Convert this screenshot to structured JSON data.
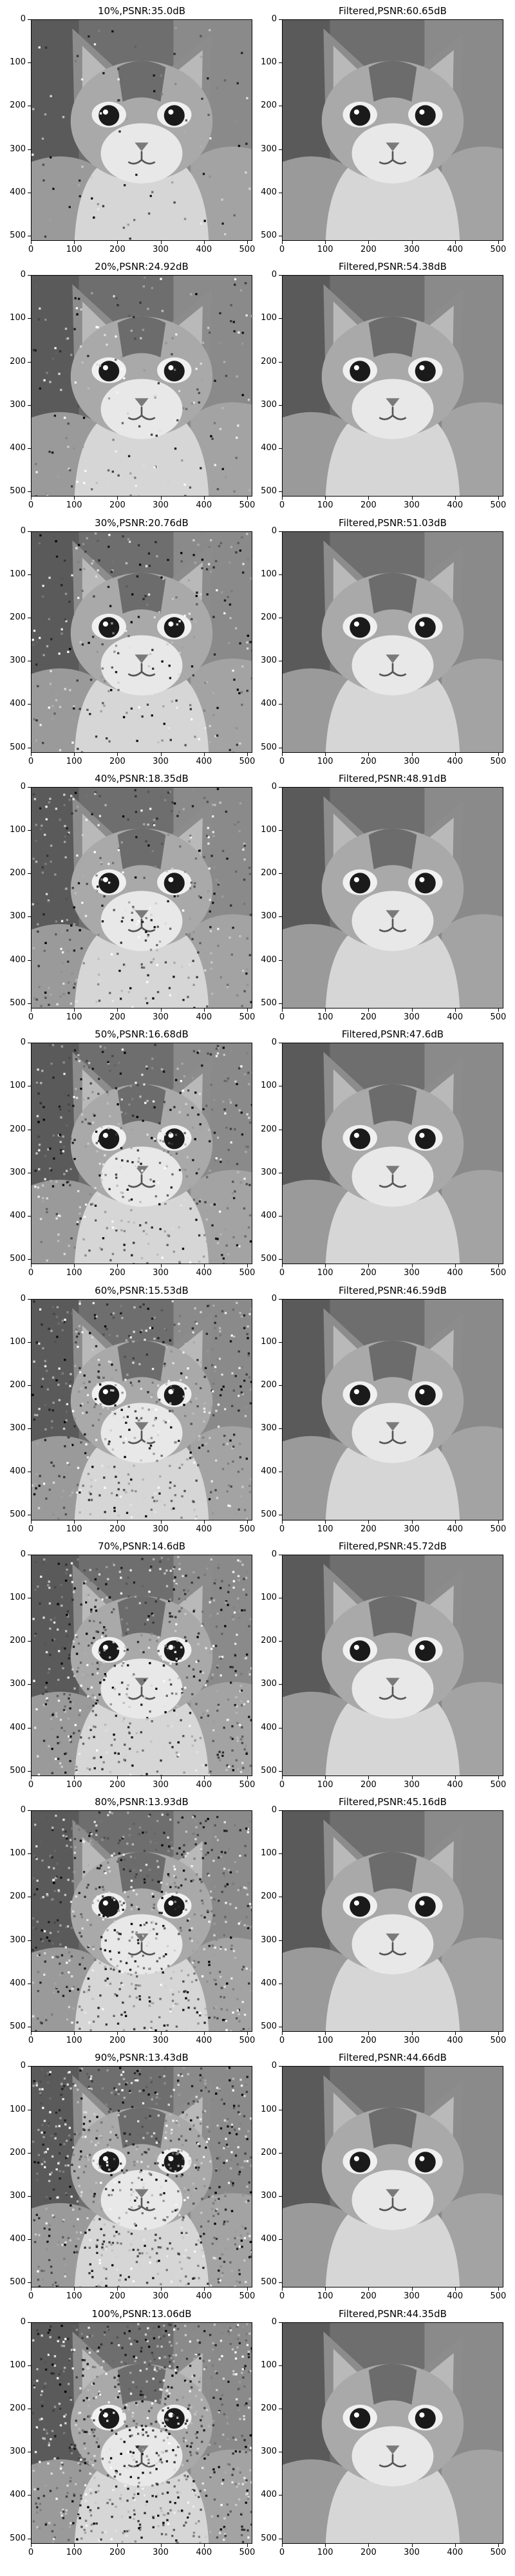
{
  "figure": {
    "axis_ticks": {
      "x": [
        "0",
        "100",
        "200",
        "300",
        "400",
        "500"
      ],
      "y": [
        "0",
        "100",
        "200",
        "300",
        "400",
        "500"
      ]
    },
    "rows": [
      {
        "noise_level": 0.1,
        "noisy_title": "10%,PSNR:35.0dB",
        "filtered_title": "Filtered,PSNR:60.65dB"
      },
      {
        "noise_level": 0.2,
        "noisy_title": "20%,PSNR:24.92dB",
        "filtered_title": "Filtered,PSNR:54.38dB"
      },
      {
        "noise_level": 0.3,
        "noisy_title": "30%,PSNR:20.76dB",
        "filtered_title": "Filtered,PSNR:51.03dB"
      },
      {
        "noise_level": 0.4,
        "noisy_title": "40%,PSNR:18.35dB",
        "filtered_title": "Filtered,PSNR:48.91dB"
      },
      {
        "noise_level": 0.5,
        "noisy_title": "50%,PSNR:16.68dB",
        "filtered_title": "Filtered,PSNR:47.6dB"
      },
      {
        "noise_level": 0.6,
        "noisy_title": "60%,PSNR:15.53dB",
        "filtered_title": "Filtered,PSNR:46.59dB"
      },
      {
        "noise_level": 0.7,
        "noisy_title": "70%,PSNR:14.6dB",
        "filtered_title": "Filtered,PSNR:45.72dB"
      },
      {
        "noise_level": 0.8,
        "noisy_title": "80%,PSNR:13.93dB",
        "filtered_title": "Filtered,PSNR:45.16dB"
      },
      {
        "noise_level": 0.9,
        "noisy_title": "90%,PSNR:13.43dB",
        "filtered_title": "Filtered,PSNR:44.66dB"
      },
      {
        "noise_level": 1.0,
        "noisy_title": "100%,PSNR:13.06dB",
        "filtered_title": "Filtered,PSNR:44.35dB"
      }
    ]
  }
}
